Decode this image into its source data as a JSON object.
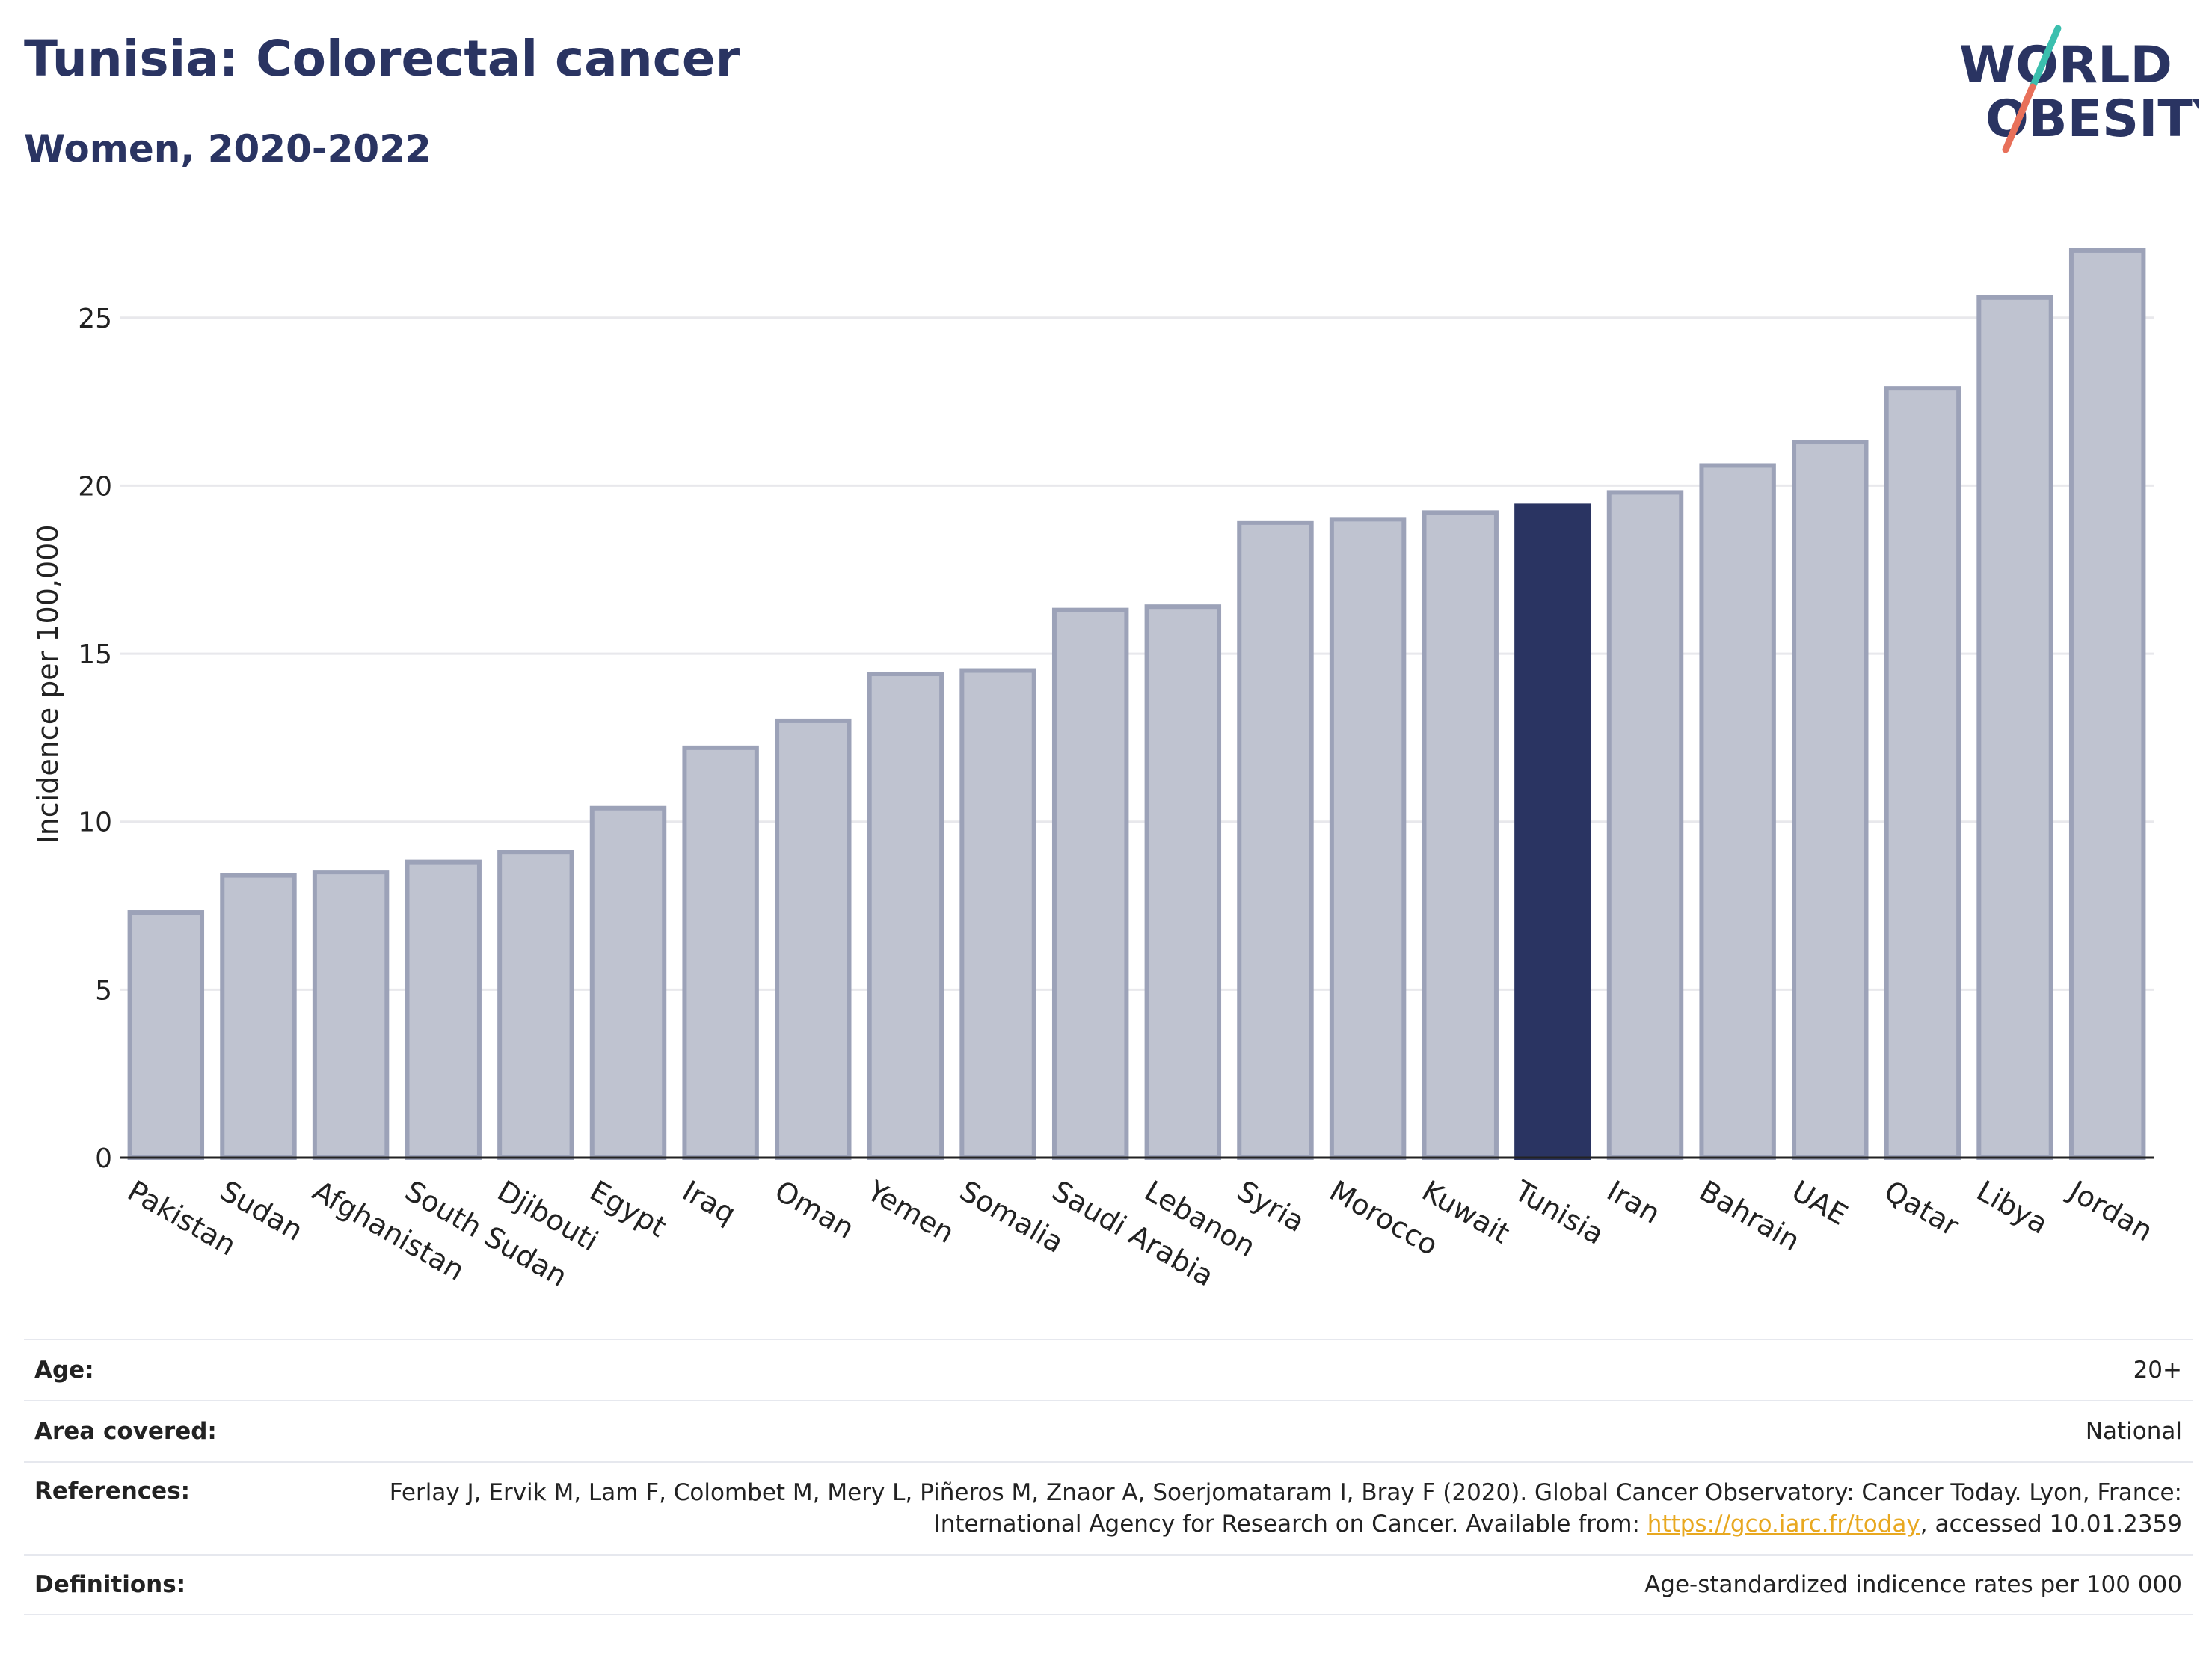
{
  "header": {
    "title": "Tunisia: Colorectal cancer",
    "subtitle": "Women, 2020-2022"
  },
  "logo": {
    "line1": "WORLD",
    "line2": "OBESITY"
  },
  "colors": {
    "highlight": "#2a3462",
    "bar_fill": "#bfc3d0",
    "bar_stroke": "#9ca2b8",
    "grid": "#e8e8ec"
  },
  "chart_data": {
    "type": "bar",
    "ylabel": "Incidence per 100,000",
    "xlabel": "",
    "ylim": [
      0,
      28
    ],
    "yticks": [
      0,
      5,
      10,
      15,
      20,
      25
    ],
    "grid": true,
    "highlight": "Tunisia",
    "categories": [
      "Pakistan",
      "Sudan",
      "Afghanistan",
      "South Sudan",
      "Djibouti",
      "Egypt",
      "Iraq",
      "Oman",
      "Yemen",
      "Somalia",
      "Saudi Arabia",
      "Lebanon",
      "Syria",
      "Morocco",
      "Kuwait",
      "Tunisia",
      "Iran",
      "Bahrain",
      "UAE",
      "Qatar",
      "Libya",
      "Jordan"
    ],
    "values": [
      7.3,
      8.4,
      8.5,
      8.8,
      9.1,
      10.4,
      12.2,
      13.0,
      14.4,
      14.5,
      16.3,
      16.4,
      18.9,
      19.0,
      19.2,
      19.4,
      19.8,
      20.6,
      21.3,
      22.9,
      25.6,
      27.0
    ]
  },
  "meta": {
    "age_label": "Age:",
    "age_value": "20+",
    "area_label": "Area covered:",
    "area_value": "National",
    "references_label": "References:",
    "references_text": "Ferlay J, Ervik M, Lam F, Colombet M, Mery L, Piñeros M, Znaor A, Soerjomataram I, Bray F (2020). Global Cancer Observatory: Cancer Today. Lyon, France: International Agency for Research on Cancer. Available from:",
    "references_link": "https://gco.iarc.fr/today",
    "references_suffix": ", accessed 10.01.2359",
    "definitions_label": "Definitions:",
    "definitions_value": "Age-standardized indicence rates per 100 000"
  }
}
